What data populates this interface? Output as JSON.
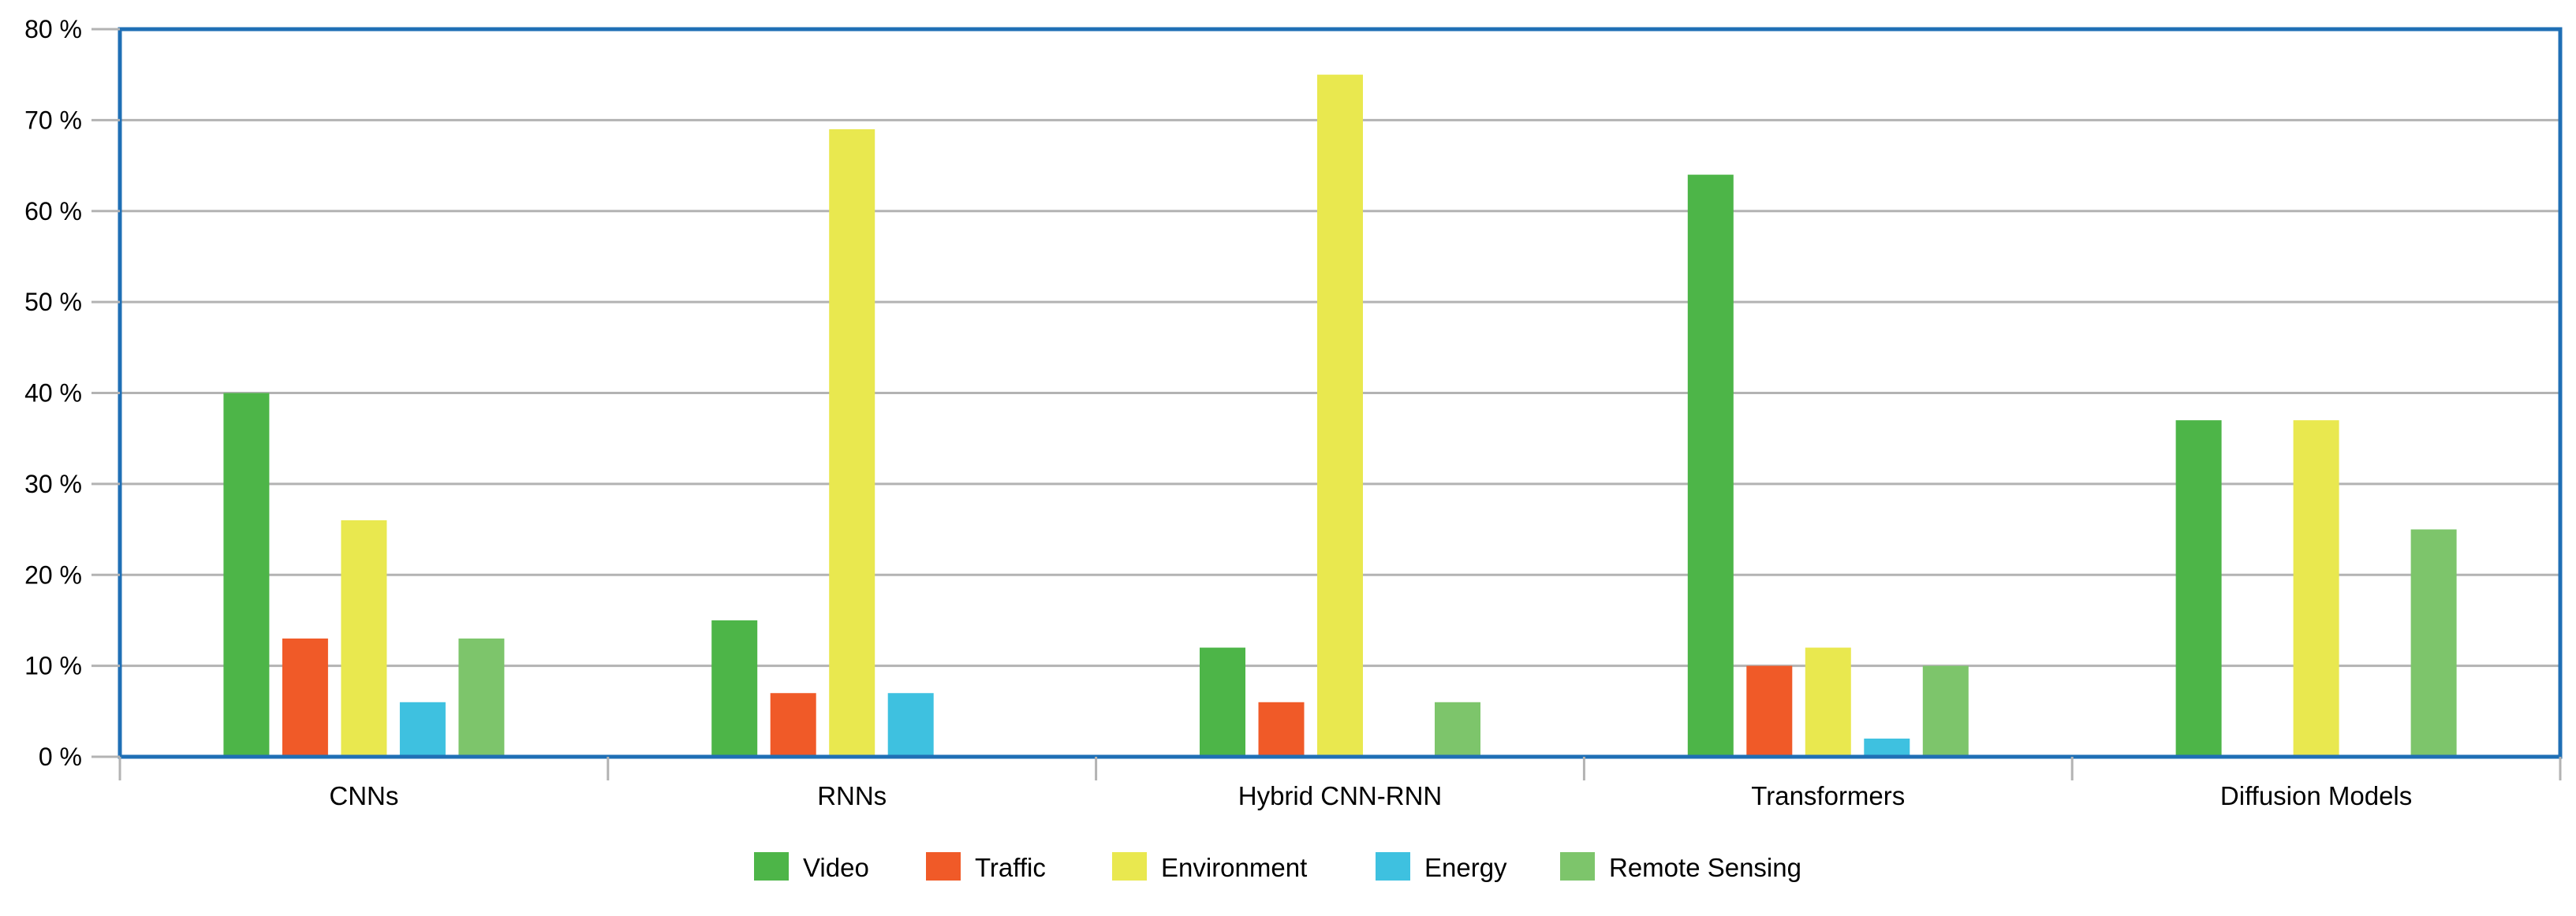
{
  "chart_data": {
    "type": "bar",
    "title": "",
    "xlabel": "",
    "ylabel": "",
    "categories": [
      "CNNs",
      "RNNs",
      "Hybrid CNN-RNN",
      "Transformers",
      "Diffusion Models"
    ],
    "series": [
      {
        "name": "Video",
        "color": "#4db548",
        "values": [
          40,
          15,
          12,
          64,
          37
        ]
      },
      {
        "name": "Traffic",
        "color": "#f05a28",
        "values": [
          13,
          7,
          6,
          10,
          0
        ]
      },
      {
        "name": "Environment",
        "color": "#e9e84f",
        "values": [
          26,
          69,
          75,
          12,
          37
        ]
      },
      {
        "name": "Energy",
        "color": "#3ec1e0",
        "values": [
          6,
          7,
          0,
          2,
          0
        ]
      },
      {
        "name": "Remote Sensing",
        "color": "#7dc56b",
        "values": [
          13,
          0,
          6,
          10,
          25
        ]
      }
    ],
    "ylim": [
      0,
      80
    ],
    "ytick_step": 10,
    "ytick_labels": [
      "0 %",
      "10 %",
      "20 %",
      "30 %",
      "40 %",
      "50 %",
      "60 %",
      "70 %",
      "80 %"
    ],
    "grid": true,
    "legend_position": "bottom-center",
    "frame_color": "#1f6fb5",
    "grid_color": "#b3b3b3"
  }
}
